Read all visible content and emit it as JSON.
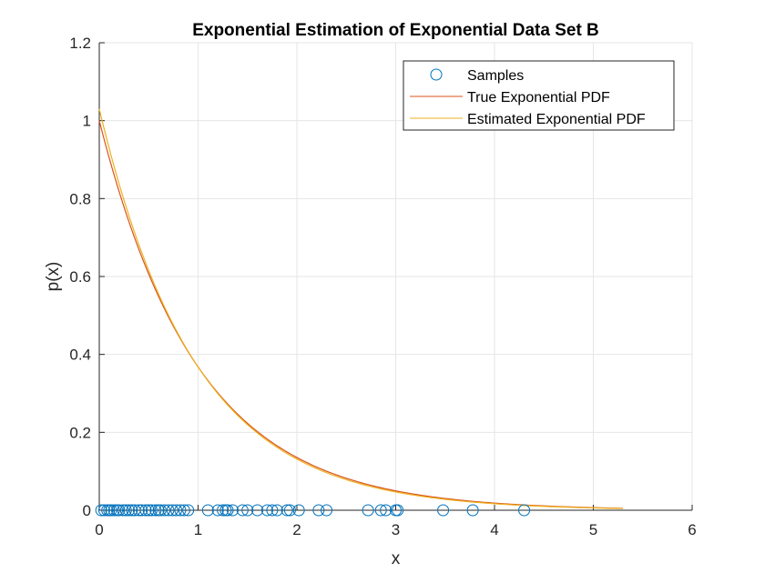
{
  "chart_data": {
    "type": "line",
    "title": "Exponential Estimation of Exponential Data Set B",
    "xlabel": "x",
    "ylabel": "p(x)",
    "xlim": [
      0,
      6
    ],
    "ylim": [
      0,
      1.2
    ],
    "xticks": [
      0,
      1,
      2,
      3,
      4,
      5,
      6
    ],
    "xtick_labels": [
      "0",
      "1",
      "2",
      "3",
      "4",
      "5",
      "6"
    ],
    "yticks": [
      0,
      0.2,
      0.4,
      0.6,
      0.8,
      1,
      1.2
    ],
    "ytick_labels": [
      "0",
      "0.2",
      "0.4",
      "0.6",
      "0.8",
      "1",
      "1.2"
    ],
    "grid": true,
    "legend_position": "top-right",
    "colors": {
      "samples": "#0072BD",
      "true_pdf": "#D95319",
      "estimated_pdf": "#EDB120",
      "grid": "#e6e6e6",
      "axis": "#262626"
    },
    "series": [
      {
        "name": "Samples",
        "kind": "scatter",
        "x": [
          0.02,
          0.05,
          0.08,
          0.1,
          0.12,
          0.15,
          0.18,
          0.2,
          0.24,
          0.27,
          0.3,
          0.33,
          0.36,
          0.4,
          0.43,
          0.47,
          0.5,
          0.53,
          0.57,
          0.6,
          0.62,
          0.66,
          0.7,
          0.74,
          0.78,
          0.82,
          0.86,
          0.9,
          1.1,
          1.2,
          1.25,
          1.28,
          1.3,
          1.35,
          1.45,
          1.5,
          1.6,
          1.7,
          1.75,
          1.8,
          1.9,
          1.93,
          2.02,
          2.22,
          2.3,
          2.72,
          2.85,
          2.9,
          3.0,
          3.02,
          3.48,
          3.78,
          4.3
        ],
        "y": [
          0,
          0,
          0,
          0,
          0,
          0,
          0,
          0,
          0,
          0,
          0,
          0,
          0,
          0,
          0,
          0,
          0,
          0,
          0,
          0,
          0,
          0,
          0,
          0,
          0,
          0,
          0,
          0,
          0,
          0,
          0,
          0,
          0,
          0,
          0,
          0,
          0,
          0,
          0,
          0,
          0,
          0,
          0,
          0,
          0,
          0,
          0,
          0,
          0,
          0,
          0,
          0,
          0
        ]
      },
      {
        "name": "True Exponential PDF",
        "kind": "line",
        "function": "exponential",
        "lambda": 1.0,
        "x_range": [
          0,
          5.3
        ]
      },
      {
        "name": "Estimated Exponential PDF",
        "kind": "line",
        "function": "exponential",
        "lambda": 1.03,
        "x_range": [
          0,
          5.3
        ]
      }
    ]
  }
}
